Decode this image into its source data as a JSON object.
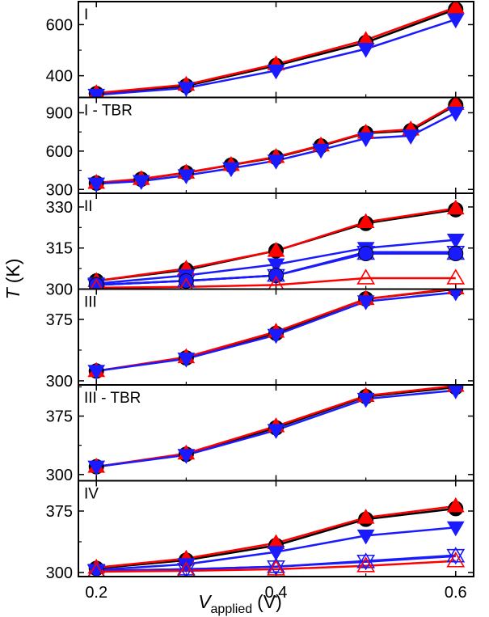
{
  "colors": {
    "black": "#000000",
    "red": "#ff0000",
    "blue": "#1a1aff",
    "white": "#ffffff"
  },
  "axes": {
    "x_label": "V",
    "x_label_sub": "applied",
    "x_label_unit": "(V)",
    "y_label": "T",
    "y_label_unit": "(K)"
  },
  "chart_data": {
    "type": "line",
    "xlim": [
      0.18,
      0.62
    ],
    "xticks": [
      0.2,
      0.4,
      0.6
    ],
    "xtick_labels": [
      "0.2",
      "0.4",
      "0.6"
    ],
    "panels": [
      {
        "label": "I",
        "ylim": [
          315,
          690
        ],
        "yticks": [
          400,
          600
        ],
        "ytick_labels": [
          "400",
          "600"
        ],
        "series": [
          {
            "color": "#000000",
            "marker": "circle",
            "filled": true,
            "x": [
              0.2,
              0.3,
              0.4,
              0.5,
              0.6
            ],
            "y": [
              330,
              360,
              440,
              530,
              660
            ]
          },
          {
            "color": "#ff0000",
            "marker": "triangle-up",
            "filled": true,
            "x": [
              0.2,
              0.3,
              0.4,
              0.5,
              0.6
            ],
            "y": [
              332,
              365,
              445,
              540,
              668
            ]
          },
          {
            "color": "#1a1aff",
            "marker": "triangle-down",
            "filled": true,
            "x": [
              0.2,
              0.3,
              0.4,
              0.5,
              0.6
            ],
            "y": [
              325,
              352,
              420,
              505,
              620
            ]
          }
        ]
      },
      {
        "label": "I - TBR",
        "ylim": [
          270,
          1020
        ],
        "yticks": [
          300,
          600,
          900
        ],
        "ytick_labels": [
          "300",
          "600",
          "900"
        ],
        "series": [
          {
            "color": "#000000",
            "marker": "circle",
            "filled": true,
            "x": [
              0.2,
              0.25,
              0.3,
              0.35,
              0.4,
              0.45,
              0.5,
              0.55,
              0.6
            ],
            "y": [
              350,
              380,
              430,
              490,
              550,
              640,
              740,
              760,
              960
            ]
          },
          {
            "color": "#ff0000",
            "marker": "triangle-up",
            "filled": true,
            "x": [
              0.2,
              0.25,
              0.3,
              0.35,
              0.4,
              0.45,
              0.5,
              0.55,
              0.6
            ],
            "y": [
              352,
              382,
              432,
              492,
              555,
              645,
              745,
              770,
              970
            ]
          },
          {
            "color": "#1a1aff",
            "marker": "triangle-down",
            "filled": true,
            "x": [
              0.2,
              0.25,
              0.3,
              0.35,
              0.4,
              0.45,
              0.5,
              0.55,
              0.6
            ],
            "y": [
              345,
              365,
              410,
              465,
              525,
              610,
              700,
              720,
              900
            ]
          }
        ]
      },
      {
        "label": "II",
        "ylim": [
          300,
          335
        ],
        "yticks": [
          300,
          315,
          330
        ],
        "ytick_labels": [
          "300",
          "315",
          "330"
        ],
        "series": [
          {
            "color": "#000000",
            "marker": "circle",
            "filled": true,
            "x": [
              0.2,
              0.3,
              0.4,
              0.5,
              0.6
            ],
            "y": [
              303,
              307,
              314,
              324,
              329
            ]
          },
          {
            "color": "#ff0000",
            "marker": "triangle-up",
            "filled": true,
            "x": [
              0.2,
              0.3,
              0.4,
              0.5,
              0.6
            ],
            "y": [
              303,
              307.5,
              314,
              324.5,
              329.5
            ]
          },
          {
            "color": "#1a1aff",
            "marker": "triangle-down",
            "filled": true,
            "x": [
              0.2,
              0.3,
              0.4,
              0.5,
              0.6
            ],
            "y": [
              302,
              305,
              309,
              315,
              318
            ]
          },
          {
            "color": "#1a1aff",
            "marker": "triangle-up",
            "filled": false,
            "x": [
              0.2,
              0.3,
              0.4,
              0.5,
              0.6
            ],
            "y": [
              301.5,
              303,
              305,
              313,
              313
            ]
          },
          {
            "color": "#1a1aff",
            "marker": "triangle-down",
            "filled": false,
            "x": [
              0.2,
              0.3,
              0.4,
              0.5,
              0.6
            ],
            "y": [
              301.5,
              303,
              305,
              313.5,
              313.5
            ]
          },
          {
            "color": "#1a1aff",
            "marker": "circle",
            "filled": true,
            "x": [
              0.2,
              0.3,
              0.4,
              0.5,
              0.6
            ],
            "y": [
              301.5,
              303,
              305,
              313,
              313
            ]
          },
          {
            "color": "#ff0000",
            "marker": "triangle-up",
            "filled": false,
            "x": [
              0.2,
              0.3,
              0.4,
              0.5,
              0.6
            ],
            "y": [
              300.5,
              300.8,
              301.5,
              304,
              304
            ]
          }
        ]
      },
      {
        "label": "III",
        "ylim": [
          295,
          412
        ],
        "yticks": [
          300,
          375
        ],
        "ytick_labels": [
          "300",
          "375"
        ],
        "series": [
          {
            "color": "#000000",
            "marker": "circle",
            "filled": true,
            "x": [
              0.2,
              0.3,
              0.4,
              0.5,
              0.6
            ],
            "y": [
              312,
              328,
              358,
              400,
              412
            ]
          },
          {
            "color": "#ff0000",
            "marker": "triangle-up",
            "filled": true,
            "x": [
              0.2,
              0.3,
              0.4,
              0.5,
              0.6
            ],
            "y": [
              312,
              329,
              360,
              400,
              413
            ]
          },
          {
            "color": "#1a1aff",
            "marker": "triangle-down",
            "filled": true,
            "x": [
              0.2,
              0.3,
              0.4,
              0.5,
              0.6
            ],
            "y": [
              312,
              327,
              356,
              397,
              408
            ]
          }
        ]
      },
      {
        "label": "III - TBR",
        "ylim": [
          292,
          415
        ],
        "yticks": [
          300,
          375
        ],
        "ytick_labels": [
          "300",
          "375"
        ],
        "series": [
          {
            "color": "#000000",
            "marker": "circle",
            "filled": true,
            "x": [
              0.2,
              0.3,
              0.4,
              0.5,
              0.6
            ],
            "y": [
              310,
              326,
              360,
              400,
              412
            ]
          },
          {
            "color": "#ff0000",
            "marker": "triangle-up",
            "filled": true,
            "x": [
              0.2,
              0.3,
              0.4,
              0.5,
              0.6
            ],
            "y": [
              310,
              327,
              362,
              401,
              414
            ]
          },
          {
            "color": "#1a1aff",
            "marker": "triangle-down",
            "filled": true,
            "x": [
              0.2,
              0.3,
              0.4,
              0.5,
              0.6
            ],
            "y": [
              310,
              325,
              357,
              397,
              408
            ]
          }
        ]
      },
      {
        "label": "IV",
        "ylim": [
          295,
          412
        ],
        "yticks": [
          300,
          375
        ],
        "ytick_labels": [
          "300",
          "375"
        ],
        "series": [
          {
            "color": "#000000",
            "marker": "circle",
            "filled": true,
            "x": [
              0.2,
              0.3,
              0.4,
              0.5,
              0.6
            ],
            "y": [
              305,
              315,
              333,
              365,
              378
            ]
          },
          {
            "color": "#ff0000",
            "marker": "triangle-up",
            "filled": true,
            "x": [
              0.2,
              0.3,
              0.4,
              0.5,
              0.6
            ],
            "y": [
              306,
              317,
              336,
              367,
              381
            ]
          },
          {
            "color": "#1a1aff",
            "marker": "triangle-down",
            "filled": true,
            "x": [
              0.2,
              0.3,
              0.4,
              0.5,
              0.6
            ],
            "y": [
              303,
              310,
              325,
              345,
              355
            ]
          },
          {
            "color": "#1a1aff",
            "marker": "triangle-up",
            "filled": false,
            "x": [
              0.2,
              0.3,
              0.4,
              0.5,
              0.6
            ],
            "y": [
              302,
              304,
              307,
              313,
              320
            ]
          },
          {
            "color": "#1a1aff",
            "marker": "triangle-down",
            "filled": false,
            "x": [
              0.2,
              0.3,
              0.4,
              0.5,
              0.6
            ],
            "y": [
              302,
              304,
              307,
              314,
              321
            ]
          },
          {
            "color": "#ff0000",
            "marker": "triangle-up",
            "filled": false,
            "x": [
              0.2,
              0.3,
              0.4,
              0.5,
              0.6
            ],
            "y": [
              301,
              302,
              304,
              308,
              314
            ]
          }
        ]
      }
    ]
  }
}
